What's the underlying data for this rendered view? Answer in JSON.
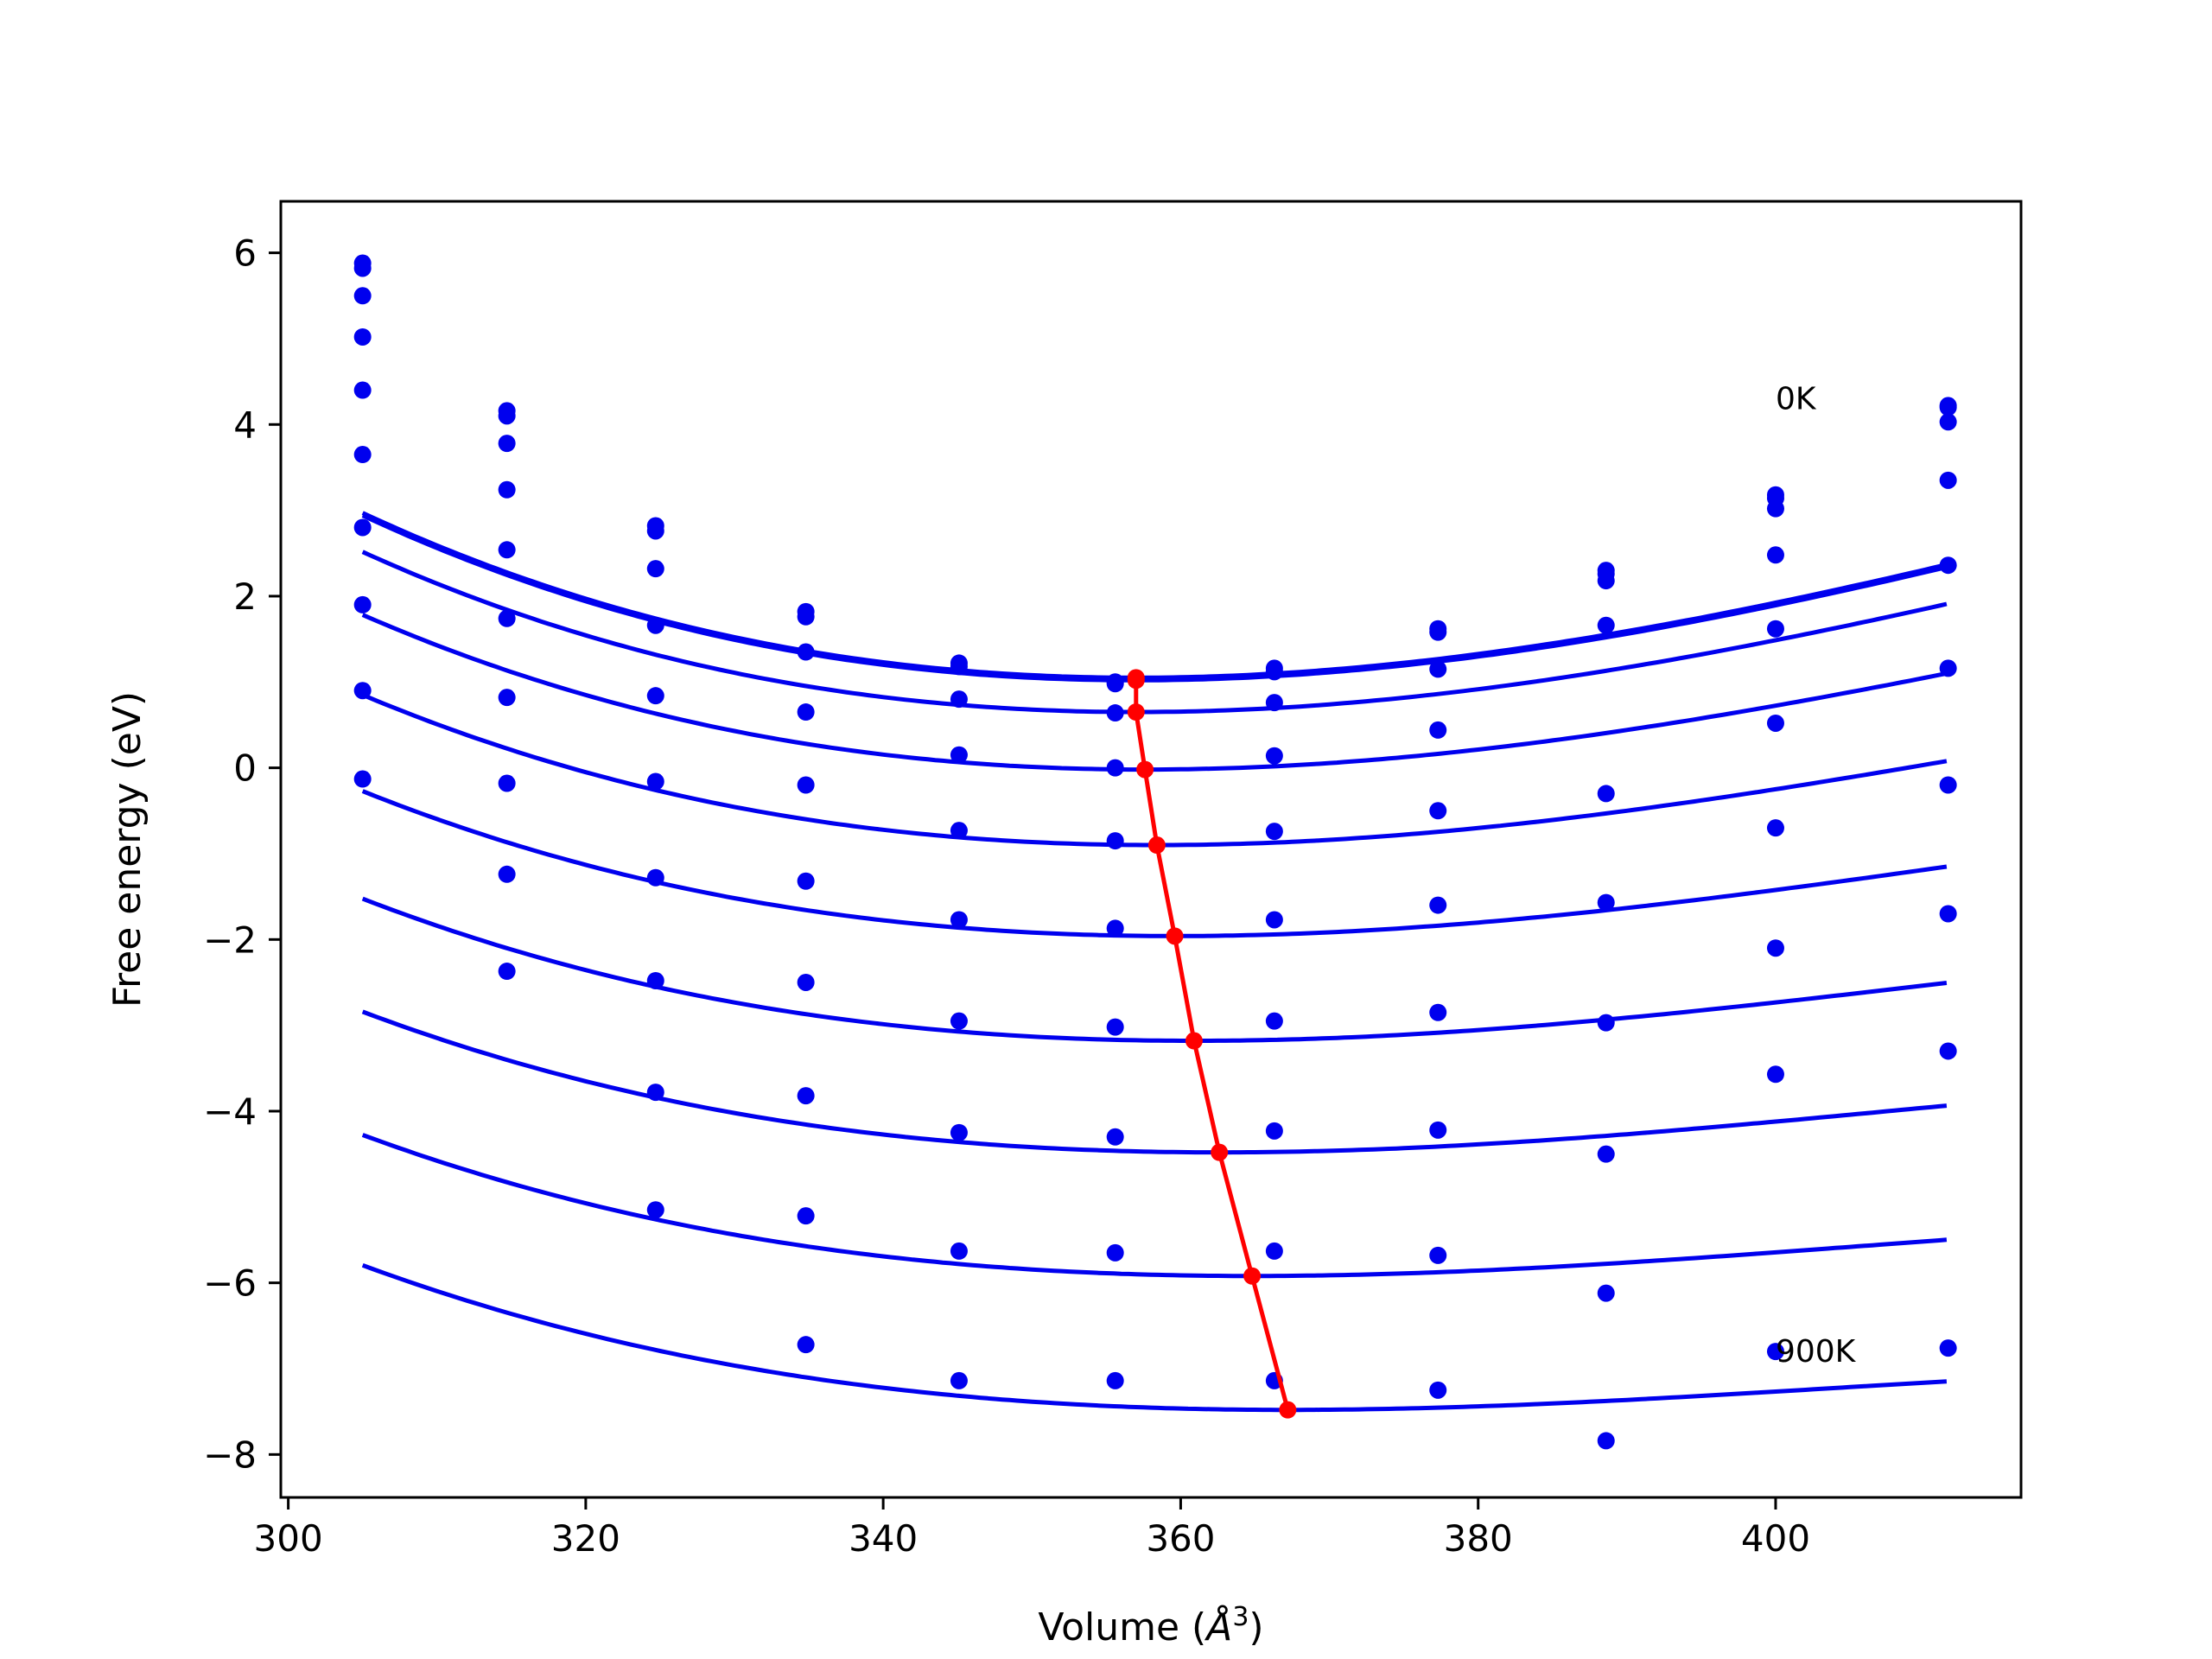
{
  "chart_data": {
    "type": "scatter",
    "title": "",
    "xlabel": "Volume ($\\AA^3$)",
    "xlabel_parts": {
      "before": "Volume (",
      "symbol": "Å",
      "sup": "3",
      "after": ")"
    },
    "ylabel": "Free energy (eV)",
    "xlim": [
      299.5,
      416.5
    ],
    "ylim": [
      -8.5,
      6.6
    ],
    "xticks": [
      300,
      320,
      340,
      360,
      380,
      400
    ],
    "yticks": [
      -8,
      -6,
      -4,
      -2,
      0,
      2,
      4,
      6
    ],
    "xtick_labels": [
      "300",
      "320",
      "340",
      "360",
      "380",
      "400"
    ],
    "ytick_labels": [
      "−8",
      "−6",
      "−4",
      "−2",
      "0",
      "2",
      "4",
      "6"
    ],
    "grid": false,
    "x": [
      305,
      314.7,
      324.7,
      334.8,
      345.1,
      355.6,
      366.3,
      377.3,
      388.6,
      400.0,
      411.6
    ],
    "series": [
      {
        "temperature_index": 0,
        "points": [
          5.88,
          4.16,
          2.82,
          1.82,
          1.22,
          1.0,
          1.16,
          1.62,
          2.3,
          3.18,
          4.22
        ],
        "fit": {
          "vmin": 357.0,
          "fmin": 1.05,
          "a": 0.00058,
          "b": -2.5e-06
        }
      },
      {
        "temperature_index": 1,
        "points": [
          5.82,
          4.1,
          2.76,
          1.76,
          1.18,
          0.98,
          1.12,
          1.58,
          2.26,
          3.14,
          4.2
        ],
        "fit": {
          "vmin": 357.0,
          "fmin": 1.02,
          "a": 0.00058,
          "b": -2.5e-06
        }
      },
      {
        "temperature_index": 2,
        "points": [
          5.5,
          3.78,
          2.32,
          1.35,
          0.8,
          0.64,
          0.76,
          1.15,
          2.18,
          3.02,
          4.03
        ],
        "fit": {
          "vmin": 357.0,
          "fmin": 0.65,
          "a": 0.00056,
          "b": -2.5e-06
        }
      },
      {
        "temperature_index": 3,
        "points": [
          5.02,
          3.24,
          1.66,
          0.65,
          0.15,
          0.0,
          0.14,
          0.44,
          1.66,
          2.48,
          3.35
        ],
        "fit": {
          "vmin": 357.6,
          "fmin": -0.02,
          "a": 0.00052,
          "b": -2.5e-06
        }
      },
      {
        "temperature_index": 4,
        "points": [
          4.4,
          2.54,
          0.84,
          -0.2,
          -0.73,
          -0.85,
          -0.74,
          -0.5,
          -0.3,
          1.62,
          2.36
        ],
        "fit": {
          "vmin": 358.4,
          "fmin": -0.9,
          "a": 0.00048,
          "b": -2.5e-06
        }
      },
      {
        "temperature_index": 5,
        "points": [
          3.65,
          1.74,
          -0.16,
          -1.32,
          -1.77,
          -1.87,
          -1.77,
          -1.6,
          -1.57,
          0.52,
          1.16
        ],
        "fit": {
          "vmin": 359.6,
          "fmin": -1.96,
          "a": 0.00043,
          "b": -2.5e-06
        }
      },
      {
        "temperature_index": 6,
        "points": [
          2.8,
          0.82,
          -1.28,
          -2.5,
          -2.95,
          -3.02,
          -2.95,
          -2.85,
          -2.97,
          -0.7,
          -0.2
        ],
        "fit": {
          "vmin": 360.9,
          "fmin": -3.18,
          "a": 0.00039,
          "b": -2.5e-06
        }
      },
      {
        "temperature_index": 7,
        "points": [
          1.9,
          -0.18,
          -2.48,
          -3.82,
          -4.25,
          -4.3,
          -4.23,
          -4.22,
          -4.5,
          -2.1,
          -1.7
        ],
        "fit": {
          "vmin": 362.6,
          "fmin": -4.48,
          "a": 0.00035,
          "b": -2.5e-06
        }
      },
      {
        "temperature_index": 8,
        "points": [
          0.9,
          -1.24,
          -3.78,
          -5.22,
          -5.63,
          -5.65,
          -5.63,
          -5.68,
          -6.12,
          -3.57,
          -3.3
        ],
        "fit": {
          "vmin": 364.8,
          "fmin": -5.92,
          "a": 0.00031,
          "b": -2.5e-06
        }
      },
      {
        "temperature_index": 9,
        "points": [
          -0.13,
          -2.37,
          -5.15,
          -6.72,
          -7.14,
          -7.14,
          -7.14,
          -7.25,
          -7.84,
          -6.8,
          -6.76
        ],
        "fit": {
          "vmin": 367.2,
          "fmin": -7.48,
          "a": 0.00028,
          "b": -2.5e-06
        }
      }
    ],
    "minima_path": {
      "x": [
        357.0,
        357.0,
        357.0,
        357.6,
        358.4,
        359.6,
        360.9,
        362.6,
        364.8,
        367.2
      ],
      "y": [
        1.05,
        1.02,
        0.65,
        -0.02,
        -0.9,
        -1.96,
        -3.18,
        -4.48,
        -5.92,
        -7.48
      ]
    },
    "annotations": [
      {
        "text": "0K",
        "x": 400.0,
        "y": 4.3
      },
      {
        "text": "900K",
        "x": 400.0,
        "y": -6.8
      }
    ],
    "colors": {
      "series": "#0000ee",
      "minima": "#ff0000",
      "axes": "#000000"
    }
  }
}
